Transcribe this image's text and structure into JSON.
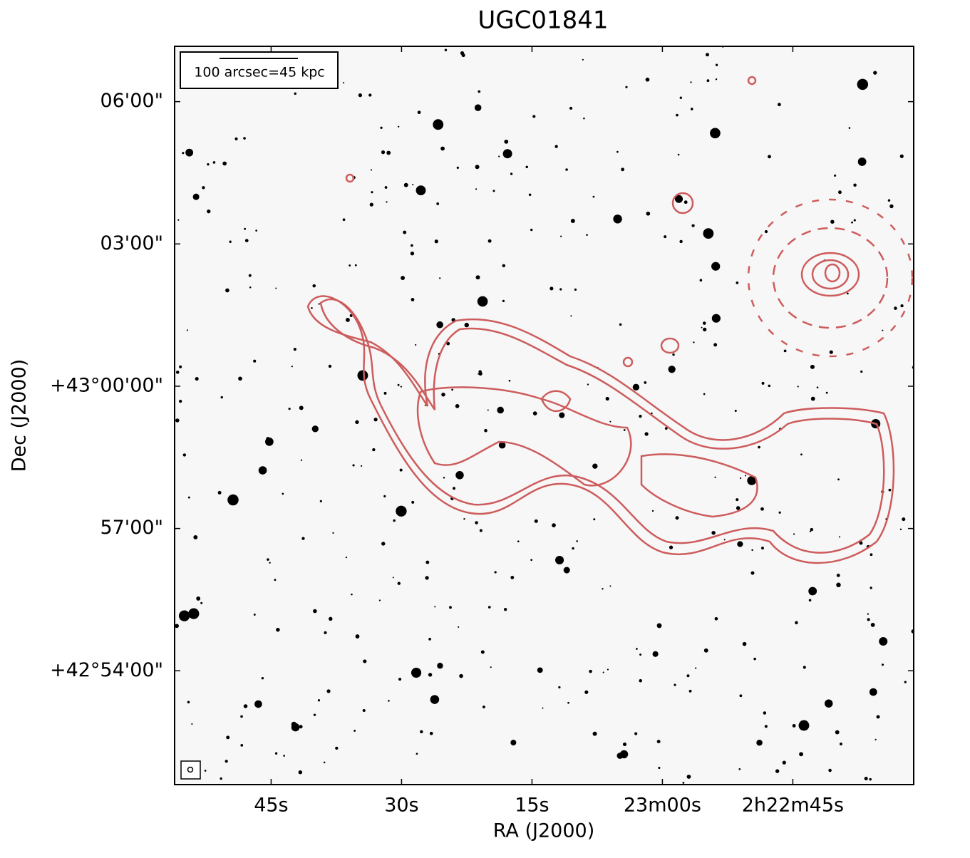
{
  "chart_data": {
    "type": "image",
    "title": "UGC01841",
    "xlabel": "RA (J2000)",
    "ylabel": "Dec (J2000)",
    "annotation": "100 arcsec=45 kpc",
    "xlim": [
      116.1,
      31.1
    ],
    "xticks": [
      {
        "value": 105,
        "label": "45s"
      },
      {
        "value": 90,
        "label": "30s"
      },
      {
        "value": 75,
        "label": "15s"
      },
      {
        "value": 60,
        "label": "23m00s"
      },
      {
        "value": 45,
        "label": "2h22m45s"
      }
    ],
    "ylim": [
      -504,
      430
    ],
    "yticks": [
      {
        "value": 360,
        "label": "06'00\""
      },
      {
        "value": 180,
        "label": "03'00\""
      },
      {
        "value": 0,
        "label": "+43°00'00\""
      },
      {
        "value": -180,
        "label": "57'00\""
      },
      {
        "value": -360,
        "label": "+42°54'00\""
      }
    ],
    "contour_color": "#cd5c5c"
  }
}
